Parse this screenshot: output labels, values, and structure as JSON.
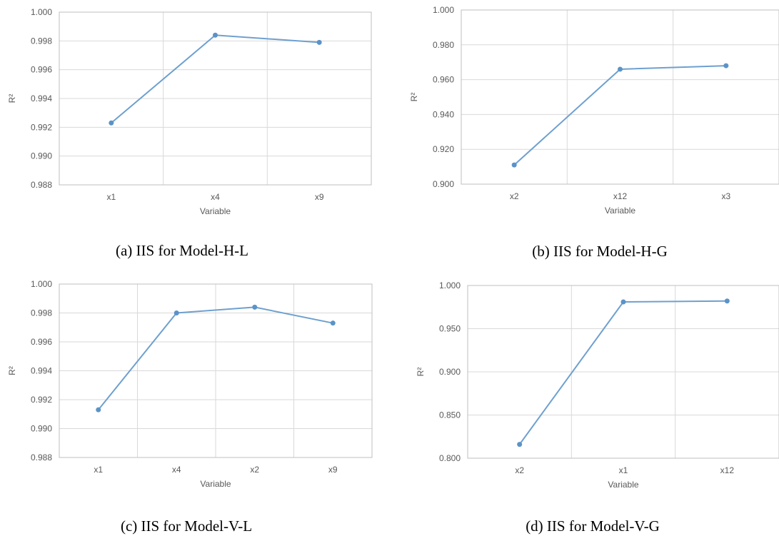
{
  "chart_data": [
    {
      "type": "line",
      "caption": "(a) IIS for Model-H-L",
      "xlabel": "Variable",
      "ylabel": "R²",
      "categories": [
        "x1",
        "x4",
        "x9"
      ],
      "values": [
        0.9923,
        0.9984,
        0.9979
      ],
      "ylim": [
        0.988,
        1.0
      ],
      "yticks": [
        "0.988",
        "0.990",
        "0.992",
        "0.994",
        "0.996",
        "0.998",
        "1.000"
      ],
      "grid": true
    },
    {
      "type": "line",
      "caption": "(b) IIS for Model-H-G",
      "xlabel": "Variable",
      "ylabel": "R²",
      "categories": [
        "x2",
        "x12",
        "x3"
      ],
      "values": [
        0.911,
        0.966,
        0.968
      ],
      "ylim": [
        0.9,
        1.0
      ],
      "yticks": [
        "0.900",
        "0.920",
        "0.940",
        "0.960",
        "0.980",
        "1.000"
      ],
      "grid": true
    },
    {
      "type": "line",
      "caption": "(c) IIS for Model-V-L",
      "xlabel": "Variable",
      "ylabel": "R²",
      "categories": [
        "x1",
        "x4",
        "x2",
        "x9"
      ],
      "values": [
        0.9913,
        0.998,
        0.9984,
        0.9973
      ],
      "ylim": [
        0.988,
        1.0
      ],
      "yticks": [
        "0.988",
        "0.990",
        "0.992",
        "0.994",
        "0.996",
        "0.998",
        "1.000"
      ],
      "grid": true
    },
    {
      "type": "line",
      "caption": "(d) IIS for Model-V-G",
      "xlabel": "Variable",
      "ylabel": "R²",
      "categories": [
        "x2",
        "x1",
        "x12"
      ],
      "values": [
        0.816,
        0.981,
        0.982
      ],
      "ylim": [
        0.8,
        1.0
      ],
      "yticks": [
        "0.800",
        "0.850",
        "0.900",
        "0.950",
        "1.000"
      ],
      "grid": true
    }
  ],
  "colors": {
    "line": "#6ea0cf",
    "marker": "#5b93c7"
  }
}
